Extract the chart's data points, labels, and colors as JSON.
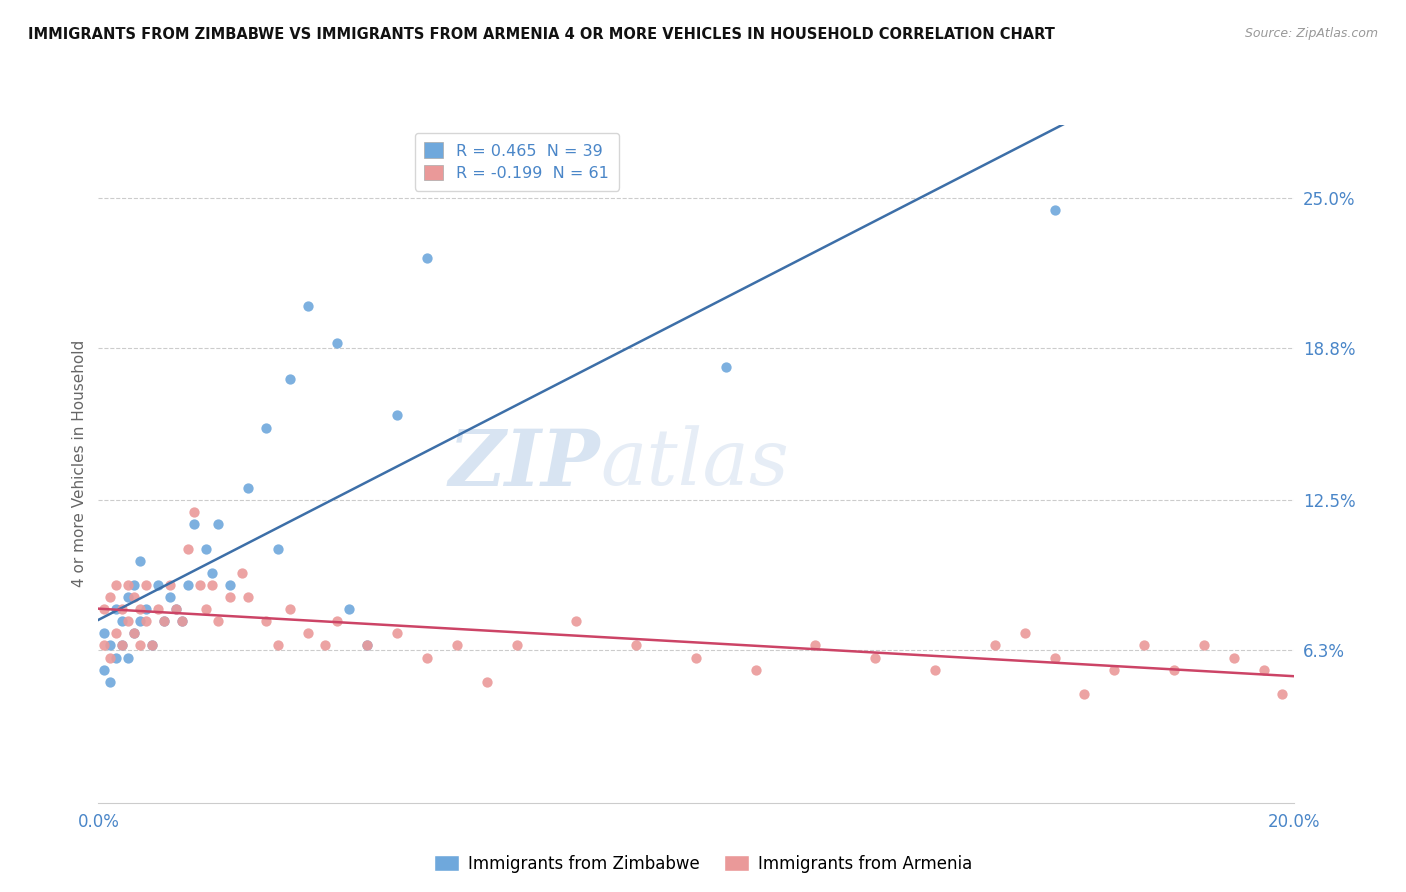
{
  "title": "IMMIGRANTS FROM ZIMBABWE VS IMMIGRANTS FROM ARMENIA 4 OR MORE VEHICLES IN HOUSEHOLD CORRELATION CHART",
  "source": "Source: ZipAtlas.com",
  "ylabel": "4 or more Vehicles in Household",
  "xlim": [
    0.0,
    0.2
  ],
  "ylim": [
    0.0,
    0.28
  ],
  "xtick_labels": [
    "0.0%",
    "20.0%"
  ],
  "xtick_vals": [
    0.0,
    0.2
  ],
  "ytick_labels": [
    "6.3%",
    "12.5%",
    "18.8%",
    "25.0%"
  ],
  "ytick_vals": [
    0.063,
    0.125,
    0.188,
    0.25
  ],
  "color_zimbabwe": "#6fa8dc",
  "color_armenia": "#ea9999",
  "line_color_zimbabwe": "#3d6fa8",
  "line_color_armenia": "#cc4466",
  "legend_r_zimbabwe": "R = 0.465",
  "legend_n_zimbabwe": "N = 39",
  "legend_r_armenia": "R = -0.199",
  "legend_n_armenia": "N = 61",
  "label_zimbabwe": "Immigrants from Zimbabwe",
  "label_armenia": "Immigrants from Armenia",
  "watermark_zip": "ZIP",
  "watermark_atlas": "atlas",
  "grid_color": "#cccccc",
  "background_color": "#ffffff",
  "zimbabwe_x": [
    0.001,
    0.001,
    0.002,
    0.002,
    0.003,
    0.003,
    0.004,
    0.004,
    0.005,
    0.005,
    0.006,
    0.006,
    0.007,
    0.007,
    0.008,
    0.009,
    0.01,
    0.011,
    0.012,
    0.013,
    0.014,
    0.015,
    0.016,
    0.018,
    0.019,
    0.02,
    0.022,
    0.025,
    0.028,
    0.03,
    0.032,
    0.035,
    0.04,
    0.042,
    0.045,
    0.05,
    0.055,
    0.105,
    0.16
  ],
  "zimbabwe_y": [
    0.055,
    0.07,
    0.05,
    0.065,
    0.06,
    0.08,
    0.065,
    0.075,
    0.06,
    0.085,
    0.07,
    0.09,
    0.075,
    0.1,
    0.08,
    0.065,
    0.09,
    0.075,
    0.085,
    0.08,
    0.075,
    0.09,
    0.115,
    0.105,
    0.095,
    0.115,
    0.09,
    0.13,
    0.155,
    0.105,
    0.175,
    0.205,
    0.19,
    0.08,
    0.065,
    0.16,
    0.225,
    0.18,
    0.245
  ],
  "armenia_x": [
    0.001,
    0.001,
    0.002,
    0.002,
    0.003,
    0.003,
    0.004,
    0.004,
    0.005,
    0.005,
    0.006,
    0.006,
    0.007,
    0.007,
    0.008,
    0.008,
    0.009,
    0.01,
    0.011,
    0.012,
    0.013,
    0.014,
    0.015,
    0.016,
    0.017,
    0.018,
    0.019,
    0.02,
    0.022,
    0.024,
    0.025,
    0.028,
    0.03,
    0.032,
    0.035,
    0.038,
    0.04,
    0.045,
    0.05,
    0.055,
    0.06,
    0.065,
    0.07,
    0.08,
    0.09,
    0.1,
    0.11,
    0.12,
    0.13,
    0.14,
    0.15,
    0.155,
    0.16,
    0.165,
    0.17,
    0.175,
    0.18,
    0.185,
    0.19,
    0.195,
    0.198
  ],
  "armenia_y": [
    0.065,
    0.08,
    0.06,
    0.085,
    0.07,
    0.09,
    0.065,
    0.08,
    0.075,
    0.09,
    0.07,
    0.085,
    0.065,
    0.08,
    0.075,
    0.09,
    0.065,
    0.08,
    0.075,
    0.09,
    0.08,
    0.075,
    0.105,
    0.12,
    0.09,
    0.08,
    0.09,
    0.075,
    0.085,
    0.095,
    0.085,
    0.075,
    0.065,
    0.08,
    0.07,
    0.065,
    0.075,
    0.065,
    0.07,
    0.06,
    0.065,
    0.05,
    0.065,
    0.075,
    0.065,
    0.06,
    0.055,
    0.065,
    0.06,
    0.055,
    0.065,
    0.07,
    0.06,
    0.045,
    0.055,
    0.065,
    0.055,
    0.065,
    0.06,
    0.055,
    0.045
  ]
}
